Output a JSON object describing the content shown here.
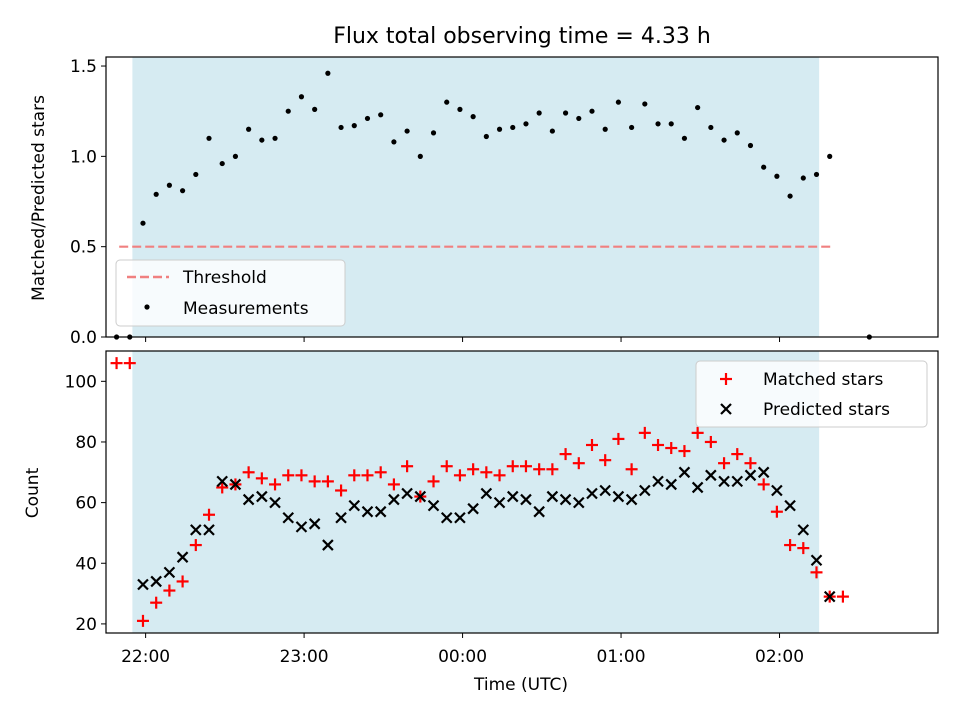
{
  "chart_data": [
    {
      "type": "scatter",
      "title": "Flux total observing time = 4.33 h",
      "xlabel": "",
      "ylabel": "Matched/Predicted stars",
      "xlim": [
        "21:45",
        "03:00"
      ],
      "ylim": [
        0,
        1.55
      ],
      "yticks": [
        0.0,
        0.5,
        1.0,
        1.5
      ],
      "ytick_labels": [
        "0.0",
        "0.5",
        "1.0",
        "1.5"
      ],
      "shaded_span": [
        "21:55",
        "02:15"
      ],
      "shaded_color": "#add8e6",
      "legend_position": "lower-left",
      "threshold": {
        "name": "Threshold",
        "y": 0.5,
        "x_range": [
          "21:50",
          "02:20"
        ],
        "color": "#f08080",
        "style": "dashed"
      },
      "series": [
        {
          "name": "Measurements",
          "marker": "dot",
          "color": "#000000",
          "x": [
            "21:49",
            "21:54",
            "21:59",
            "22:04",
            "22:09",
            "22:14",
            "22:19",
            "22:24",
            "22:29",
            "22:34",
            "22:39",
            "22:44",
            "22:49",
            "22:54",
            "22:59",
            "23:04",
            "23:09",
            "23:14",
            "23:19",
            "23:24",
            "23:29",
            "23:34",
            "23:39",
            "23:44",
            "23:49",
            "23:54",
            "23:59",
            "00:04",
            "00:09",
            "00:14",
            "00:19",
            "00:24",
            "00:29",
            "00:34",
            "00:39",
            "00:44",
            "00:49",
            "00:54",
            "00:59",
            "01:04",
            "01:09",
            "01:14",
            "01:19",
            "01:24",
            "01:29",
            "01:34",
            "01:39",
            "01:44",
            "01:49",
            "01:54",
            "01:59",
            "02:04",
            "02:09",
            "02:14",
            "02:19"
          ],
          "y": [
            0.0,
            0.0,
            0.63,
            0.79,
            0.84,
            0.81,
            0.9,
            1.1,
            0.96,
            1.0,
            1.15,
            1.09,
            1.1,
            1.25,
            1.33,
            1.26,
            1.46,
            1.16,
            1.17,
            1.21,
            1.23,
            1.08,
            1.14,
            1.0,
            1.13,
            1.3,
            1.26,
            1.22,
            1.11,
            1.15,
            1.16,
            1.18,
            1.24,
            1.14,
            1.24,
            1.21,
            1.25,
            1.15,
            1.3,
            1.16,
            1.29,
            1.18,
            1.18,
            1.1,
            1.27,
            1.16,
            1.09,
            1.13,
            1.06,
            0.94,
            0.89,
            0.78,
            0.88,
            0.9,
            1.0
          ]
        }
      ],
      "extra_points": [
        {
          "x": "02:34",
          "y": 0.0
        }
      ]
    },
    {
      "type": "scatter",
      "title": "",
      "xlabel": "Time (UTC)",
      "ylabel": "Count",
      "xlim": [
        "21:45",
        "03:00"
      ],
      "ylim": [
        17,
        110
      ],
      "yticks": [
        20,
        40,
        60,
        80,
        100
      ],
      "xticks": [
        "22:00",
        "23:00",
        "00:00",
        "01:00",
        "02:00"
      ],
      "shaded_span": [
        "21:55",
        "02:15"
      ],
      "legend_position": "upper-right",
      "series": [
        {
          "name": "Matched stars",
          "marker": "plus",
          "color": "#ff0000",
          "x": [
            "21:49",
            "21:54",
            "21:59",
            "22:04",
            "22:09",
            "22:14",
            "22:19",
            "22:24",
            "22:29",
            "22:34",
            "22:39",
            "22:44",
            "22:49",
            "22:54",
            "22:59",
            "23:04",
            "23:09",
            "23:14",
            "23:19",
            "23:24",
            "23:29",
            "23:34",
            "23:39",
            "23:44",
            "23:49",
            "23:54",
            "23:59",
            "00:04",
            "00:09",
            "00:14",
            "00:19",
            "00:24",
            "00:29",
            "00:34",
            "00:39",
            "00:44",
            "00:49",
            "00:54",
            "00:59",
            "01:04",
            "01:09",
            "01:14",
            "01:19",
            "01:24",
            "01:29",
            "01:34",
            "01:39",
            "01:44",
            "01:49",
            "01:54",
            "01:59",
            "02:04",
            "02:09",
            "02:14",
            "02:19",
            "02:24"
          ],
          "y": [
            106,
            106,
            21,
            27,
            31,
            34,
            46,
            56,
            65,
            66,
            70,
            68,
            66,
            69,
            69,
            67,
            67,
            64,
            69,
            69,
            70,
            66,
            72,
            62,
            67,
            72,
            69,
            71,
            70,
            69,
            72,
            72,
            71,
            71,
            76,
            73,
            79,
            74,
            81,
            71,
            83,
            79,
            78,
            77,
            83,
            80,
            73,
            76,
            73,
            66,
            57,
            46,
            45,
            37,
            29,
            29
          ]
        },
        {
          "name": "Predicted stars",
          "marker": "x",
          "color": "#000000",
          "x": [
            "21:59",
            "22:04",
            "22:09",
            "22:14",
            "22:19",
            "22:24",
            "22:29",
            "22:34",
            "22:39",
            "22:44",
            "22:49",
            "22:54",
            "22:59",
            "23:04",
            "23:09",
            "23:14",
            "23:19",
            "23:24",
            "23:29",
            "23:34",
            "23:39",
            "23:44",
            "23:49",
            "23:54",
            "23:59",
            "00:04",
            "00:09",
            "00:14",
            "00:19",
            "00:24",
            "00:29",
            "00:34",
            "00:39",
            "00:44",
            "00:49",
            "00:54",
            "00:59",
            "01:04",
            "01:09",
            "01:14",
            "01:19",
            "01:24",
            "01:29",
            "01:34",
            "01:39",
            "01:44",
            "01:49",
            "01:54",
            "01:59",
            "02:04",
            "02:09",
            "02:14",
            "02:19"
          ],
          "y": [
            33,
            34,
            37,
            42,
            51,
            51,
            67,
            66,
            61,
            62,
            60,
            55,
            52,
            53,
            46,
            55,
            59,
            57,
            57,
            61,
            63,
            62,
            59,
            55,
            55,
            58,
            63,
            60,
            62,
            61,
            57,
            62,
            61,
            60,
            63,
            64,
            62,
            61,
            64,
            67,
            66,
            70,
            65,
            69,
            67,
            67,
            69,
            70,
            64,
            59,
            51,
            41,
            29
          ]
        }
      ]
    }
  ]
}
